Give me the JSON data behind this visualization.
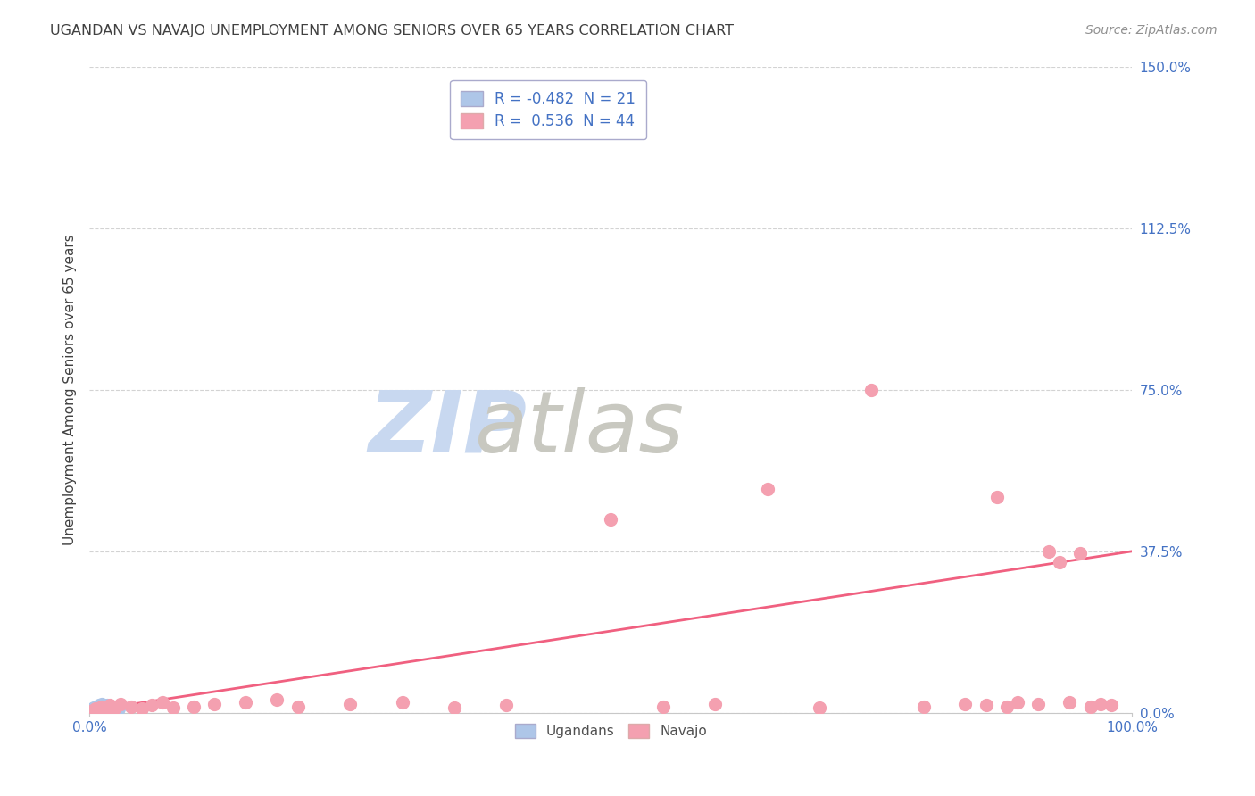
{
  "title": "UGANDAN VS NAVAJO UNEMPLOYMENT AMONG SENIORS OVER 65 YEARS CORRELATION CHART",
  "source": "Source: ZipAtlas.com",
  "ylabel": "Unemployment Among Seniors over 65 years",
  "xlim": [
    0,
    1.0
  ],
  "ylim": [
    0,
    1.5
  ],
  "yticks": [
    0.0,
    0.375,
    0.75,
    1.125,
    1.5
  ],
  "ytick_labels": [
    "0.0%",
    "37.5%",
    "75.0%",
    "112.5%",
    "150.0%"
  ],
  "ugandan_color": "#aec6e8",
  "navajo_color": "#f4a0b0",
  "trend_color": "#f06080",
  "legend_R_ugandan": "-0.482",
  "legend_N_ugandan": "21",
  "legend_R_navajo": "0.536",
  "legend_N_navajo": "44",
  "legend_R_color": "#4472c4",
  "background_color": "#ffffff",
  "grid_color": "#c8c8c8",
  "title_color": "#404040",
  "source_color": "#909090",
  "axis_label_color": "#404040",
  "tick_label_color": "#4472c4",
  "ugandan_x": [
    0.002,
    0.004,
    0.006,
    0.007,
    0.008,
    0.009,
    0.01,
    0.011,
    0.012,
    0.013,
    0.014,
    0.015,
    0.016,
    0.017,
    0.018,
    0.019,
    0.02,
    0.022,
    0.024,
    0.026,
    0.028
  ],
  "ugandan_y": [
    0.008,
    0.012,
    0.005,
    0.015,
    0.008,
    0.018,
    0.01,
    0.006,
    0.02,
    0.008,
    0.015,
    0.005,
    0.012,
    0.018,
    0.008,
    0.01,
    0.015,
    0.005,
    0.012,
    0.008,
    0.01
  ],
  "navajo_x": [
    0.003,
    0.006,
    0.008,
    0.01,
    0.012,
    0.015,
    0.018,
    0.02,
    0.025,
    0.03,
    0.04,
    0.05,
    0.06,
    0.07,
    0.08,
    0.1,
    0.12,
    0.15,
    0.18,
    0.2,
    0.25,
    0.3,
    0.35,
    0.4,
    0.5,
    0.55,
    0.6,
    0.65,
    0.7,
    0.75,
    0.8,
    0.84,
    0.86,
    0.87,
    0.88,
    0.89,
    0.91,
    0.92,
    0.93,
    0.94,
    0.95,
    0.96,
    0.97,
    0.98
  ],
  "navajo_y": [
    0.005,
    0.01,
    0.008,
    0.012,
    0.015,
    0.008,
    0.01,
    0.018,
    0.012,
    0.02,
    0.015,
    0.01,
    0.018,
    0.025,
    0.012,
    0.015,
    0.02,
    0.025,
    0.03,
    0.015,
    0.02,
    0.025,
    0.012,
    0.018,
    0.45,
    0.015,
    0.02,
    0.52,
    0.012,
    0.75,
    0.015,
    0.02,
    0.018,
    0.5,
    0.015,
    0.025,
    0.02,
    0.375,
    0.35,
    0.025,
    0.37,
    0.015,
    0.02,
    0.018
  ],
  "trend_x0": 0.0,
  "trend_x1": 1.0,
  "trend_y0": 0.005,
  "trend_y1": 0.375,
  "watermark_zip": "ZIP",
  "watermark_atlas": "atlas",
  "watermark_color_zip": "#c8d8f0",
  "watermark_color_atlas": "#c8c8c0",
  "watermark_fontsize": 70,
  "bottom_legend_labels": [
    "Ugandans",
    "Navajo"
  ]
}
